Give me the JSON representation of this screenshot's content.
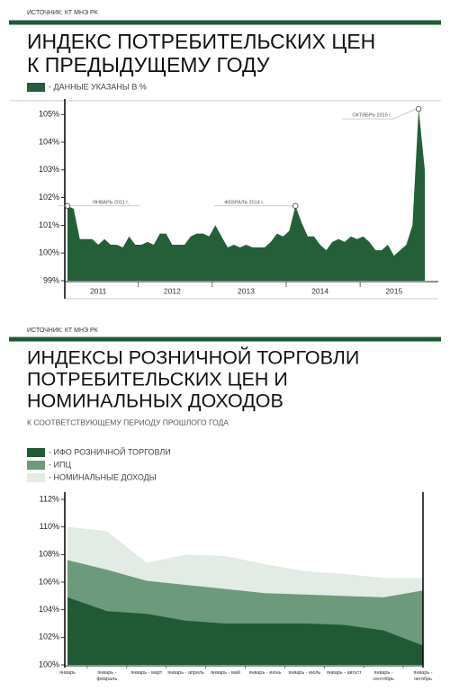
{
  "chart_data": [
    {
      "type": "area",
      "source": "ИСТОЧНИК: КТ МНЭ РК",
      "title": [
        "ИНДЕКС ПОТРЕБИТЕЛЬСКИХ ЦЕН",
        "К ПРЕДЫДУЩЕМУ ГОДУ"
      ],
      "categories": [
        null,
        null,
        null,
        null,
        null,
        "2011",
        null,
        null,
        null,
        null,
        null,
        null,
        null,
        null,
        null,
        null,
        null,
        "2012",
        null,
        null,
        null,
        null,
        null,
        null,
        null,
        null,
        null,
        null,
        null,
        "2013",
        null,
        null,
        null,
        null,
        null,
        null,
        null,
        null,
        null,
        null,
        null,
        "2014",
        null,
        null,
        null,
        null,
        null,
        null,
        null,
        null,
        null,
        null,
        null,
        "2015",
        null,
        null,
        null,
        null,
        null
      ],
      "series": [
        {
          "name": "- ДАННЫЕ УКАЗАНЫ В %",
          "color": "#245f38",
          "values": [
            101.7,
            101.6,
            100.5,
            100.5,
            100.5,
            100.3,
            100.5,
            100.3,
            100.3,
            100.2,
            100.6,
            100.3,
            100.3,
            100.4,
            100.3,
            100.7,
            100.7,
            100.3,
            100.3,
            100.3,
            100.6,
            100.7,
            100.7,
            100.6,
            101.0,
            100.6,
            100.2,
            100.3,
            100.2,
            100.3,
            100.2,
            100.2,
            100.2,
            100.4,
            100.7,
            100.6,
            100.8,
            101.7,
            101.1,
            100.6,
            100.6,
            100.3,
            100.1,
            100.4,
            100.5,
            100.4,
            100.6,
            100.5,
            100.6,
            100.4,
            100.1,
            100.1,
            100.3,
            99.9,
            100.1,
            100.3,
            101.0,
            105.2,
            103.0
          ]
        }
      ],
      "ylim": [
        99,
        105.3
      ],
      "yticks": [
        {
          "value": 99,
          "label": "99%"
        },
        {
          "value": 100,
          "label": "100%"
        },
        {
          "value": 101,
          "label": "101%"
        },
        {
          "value": 102,
          "label": "102%"
        },
        {
          "value": 103,
          "label": "103%"
        },
        {
          "value": 104,
          "label": "104%"
        },
        {
          "value": 105,
          "label": "105%"
        }
      ],
      "annotations": [
        "ЯНВАРЬ 2011 г.",
        "ФЕВРАЛЬ 2014 г.",
        "ОКТЯБРЬ 2015 г."
      ]
    },
    {
      "type": "area",
      "source": "ИСТОЧНИК: КТ МНЭ РК",
      "title": [
        "ИНДЕКСЫ РОЗНИЧНОЙ ТОРГОВЛИ",
        "ПОТРЕБИТЕЛЬСКИХ ЦЕН И",
        "НОМИНАЛЬНЫХ ДОХОДОВ"
      ],
      "subtitle": "К СООТВЕТСТВУЮЩЕМУ ПЕРИОДУ ПРОШЛОГО ГОДА",
      "categories": [
        "январь",
        "январь - февраль",
        "январь - март",
        "январь - апрель",
        "январь - май",
        "январь - июнь",
        "январь - июль",
        "январь - август",
        "январь - сентябрь",
        "январь - октябрь"
      ],
      "series": [
        {
          "name": "- ИФО РОЗНИЧНОЙ ТОРГОВЛИ",
          "color": "#1f5a34",
          "values": [
            104.9,
            103.9,
            103.7,
            103.2,
            103.0,
            103.0,
            103.0,
            102.9,
            102.5,
            101.4
          ]
        },
        {
          "name": "- ИПЦ",
          "color": "#6d9a7b",
          "values": [
            107.6,
            106.9,
            106.1,
            105.8,
            105.5,
            105.2,
            105.1,
            105.0,
            104.9,
            105.4
          ]
        },
        {
          "name": "- НОМИНАЛЬНЫЕ ДОХОДЫ",
          "color": "#e2ece5",
          "values": [
            110.0,
            109.7,
            107.4,
            108.0,
            107.9,
            107.3,
            106.8,
            106.6,
            106.3,
            106.3
          ]
        }
      ],
      "ylim": [
        100,
        112
      ],
      "yticks": [
        {
          "value": 100,
          "label": "100%"
        },
        {
          "value": 102,
          "label": "102%"
        },
        {
          "value": 104,
          "label": "104%"
        },
        {
          "value": 106,
          "label": "106%"
        },
        {
          "value": 108,
          "label": "108%"
        },
        {
          "value": 110,
          "label": "110%"
        },
        {
          "value": 112,
          "label": "112%"
        }
      ]
    }
  ]
}
